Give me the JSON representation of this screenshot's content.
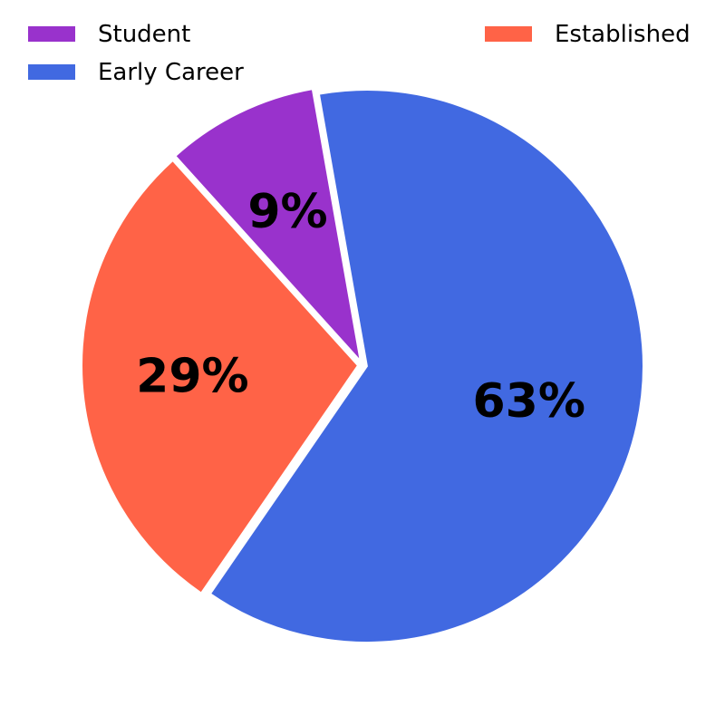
{
  "chart_data": {
    "type": "pie",
    "title": "",
    "legend_position": "top",
    "slices": [
      {
        "name": "Student",
        "value": 9,
        "label": "9%",
        "color": "#9932CC"
      },
      {
        "name": "Established",
        "value": 29,
        "label": "29%",
        "color": "#FF6347"
      },
      {
        "name": "Early Career",
        "value": 63,
        "label": "63%",
        "color": "#4169E1"
      }
    ]
  },
  "legend": {
    "items": [
      {
        "label": "Student",
        "color": "#9932CC"
      },
      {
        "label": "Early Career",
        "color": "#4169E1"
      },
      {
        "label": "Established",
        "color": "#FF6347"
      }
    ]
  }
}
